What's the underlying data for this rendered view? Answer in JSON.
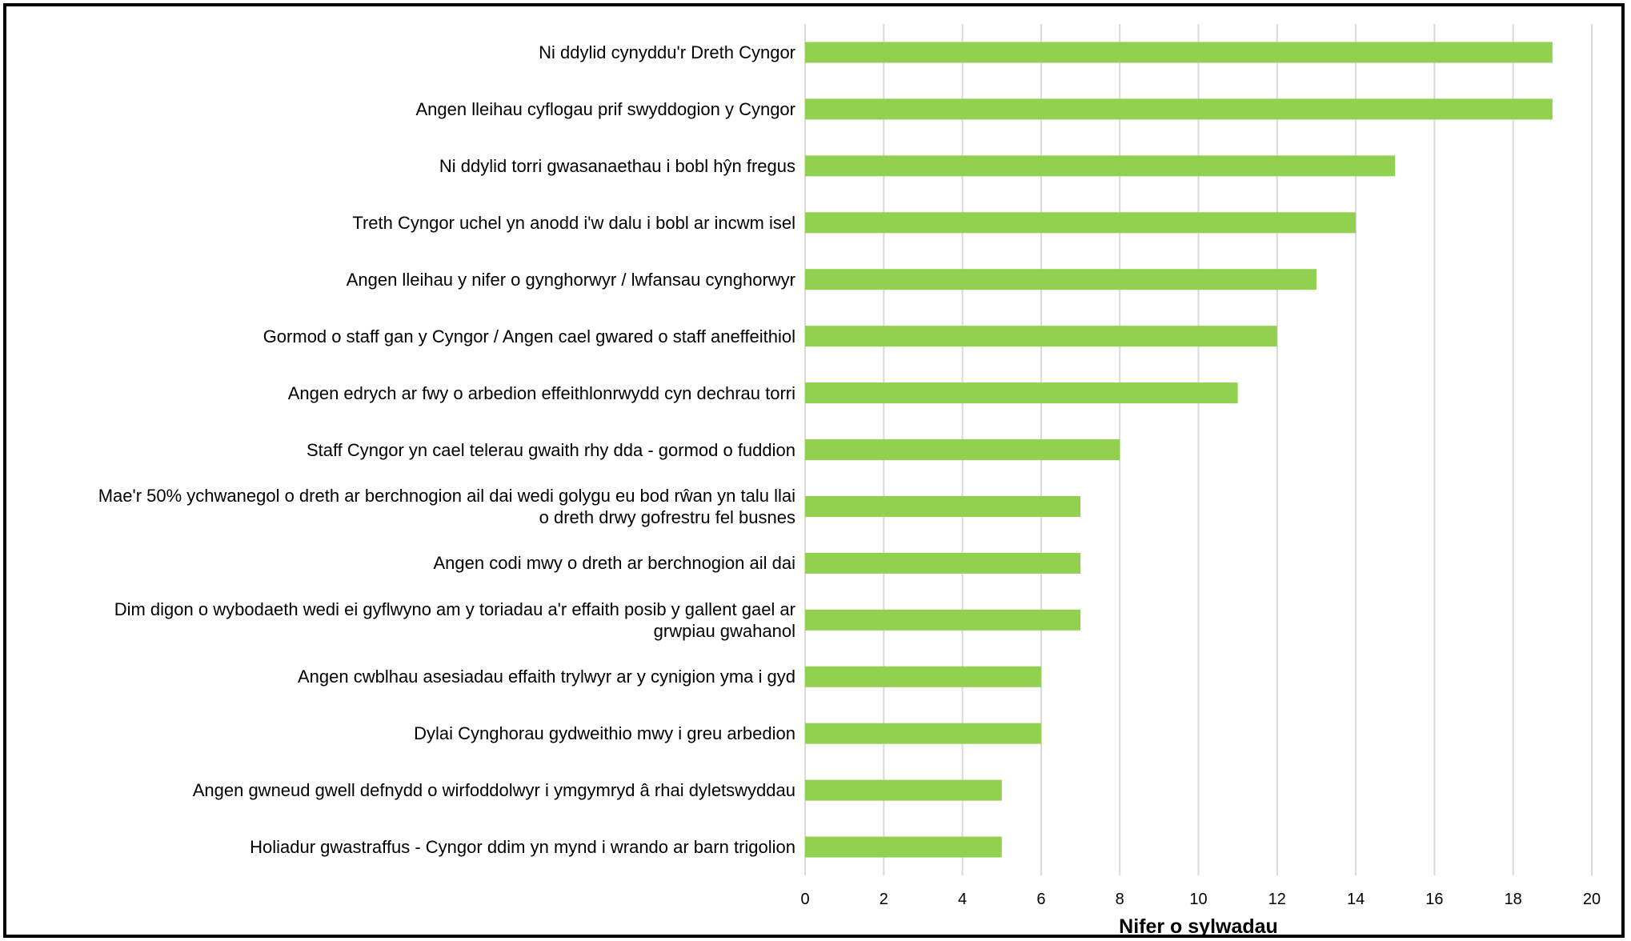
{
  "chart_data": {
    "type": "bar",
    "orientation": "horizontal",
    "categories": [
      "Ni ddylid cynyddu'r Dreth Cyngor",
      "Angen lleihau cyflogau prif swyddogion y Cyngor",
      "Ni ddylid torri gwasanaethau i bobl hŷn fregus",
      "Treth Cyngor uchel yn anodd i'w dalu i bobl ar incwm isel",
      "Angen lleihau y nifer o gynghorwyr / lwfansau cynghorwyr",
      "Gormod o staff gan y Cyngor / Angen cael gwared o staff aneffeithiol",
      "Angen edrych ar fwy o arbedion effeithlonrwydd cyn dechrau torri",
      "Staff Cyngor yn cael telerau gwaith rhy dda - gormod o fuddion",
      "Mae'r 50% ychwanegol o dreth ar berchnogion ail dai wedi golygu eu bod rŵan yn talu llai\no dreth drwy gofrestru fel busnes",
      "Angen codi mwy o dreth ar berchnogion ail dai",
      "Dim digon o wybodaeth wedi ei gyflwyno am y toriadau a'r effaith posib y gallent gael ar\ngrwpiau gwahanol",
      "Angen cwblhau asesiadau effaith trylwyr ar y cynigion yma i gyd",
      "Dylai Cynghorau gydweithio mwy i greu arbedion",
      "Angen gwneud gwell defnydd o wirfoddolwyr i ymgymryd â rhai dyletswyddau",
      "Holiadur gwastraffus - Cyngor ddim yn mynd i wrando ar barn trigolion"
    ],
    "values": [
      19,
      19,
      15,
      14,
      13,
      12,
      11,
      8,
      7,
      7,
      7,
      6,
      6,
      5,
      5
    ],
    "xlim": [
      0,
      20
    ],
    "xticks": [
      "0",
      "2",
      "4",
      "6",
      "8",
      "10",
      "12",
      "14",
      "16",
      "18",
      "20"
    ],
    "xlabel": "Nifer o sylwadau",
    "ylabel": "",
    "title": "",
    "grid": "vertical",
    "legend": "none",
    "bar_color": "#92d050",
    "grid_color": "#d9d9d9"
  }
}
